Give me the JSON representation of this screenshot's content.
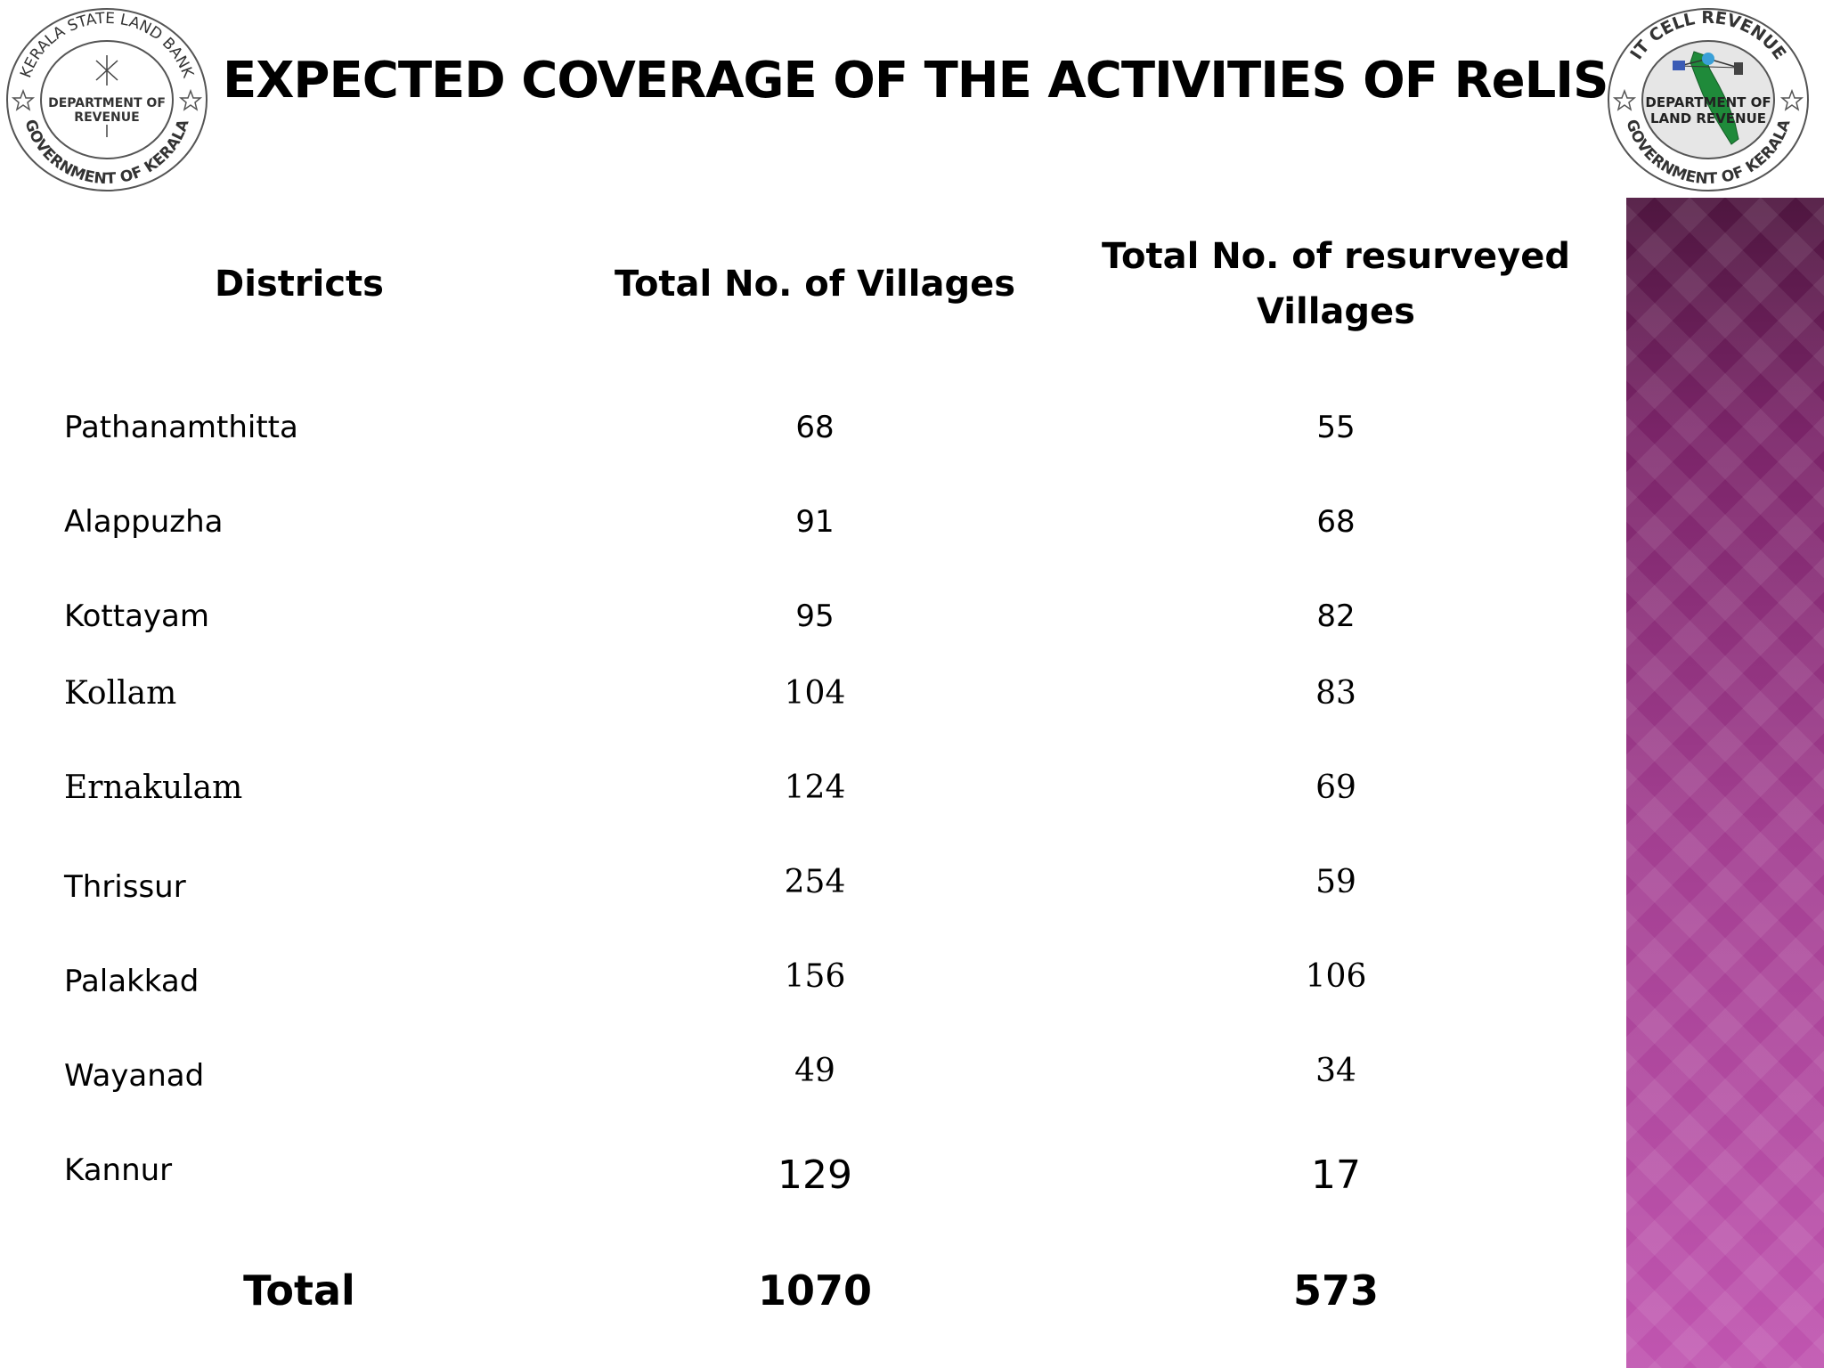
{
  "title": "EXPECTED COVERAGE OF THE ACTIVITIES OF ReLIS",
  "left_seal": {
    "ring_top": "KERALA STATE LAND BANK",
    "ring_bottom": "GOVERNMENT OF KERALA",
    "center_line1": "DEPARTMENT OF",
    "center_line2": "REVENUE"
  },
  "right_seal": {
    "ring_top": "IT CELL REVENUE",
    "ring_bottom": "GOVERNMENT OF KERALA",
    "center_line1": "DEPARTMENT OF",
    "center_line2": "LAND REVENUE"
  },
  "table": {
    "headers": {
      "district": "Districts",
      "total": "Total No. of Villages",
      "resurveyed_line1": "Total No. of resurveyed",
      "resurveyed_line2": "Villages"
    },
    "rows": [
      {
        "district": "Pathanamthitta",
        "total": "68",
        "resurveyed": "55"
      },
      {
        "district": "Alappuzha",
        "total": "91",
        "resurveyed": "68"
      },
      {
        "district": "Kottayam",
        "total": "95",
        "resurveyed": "82"
      },
      {
        "district": "Kollam",
        "total": "104",
        "resurveyed": "83"
      },
      {
        "district": "Ernakulam",
        "total": "124",
        "resurveyed": "69"
      },
      {
        "district": "Thrissur",
        "total": "254",
        "resurveyed": "59"
      },
      {
        "district": "Palakkad",
        "total": "156",
        "resurveyed": "106"
      },
      {
        "district": "Wayanad",
        "total": "49",
        "resurveyed": "34"
      },
      {
        "district": "Kannur",
        "total": "129",
        "resurveyed": "17"
      }
    ],
    "totals": {
      "label": "Total",
      "total": "1070",
      "resurveyed": "573"
    }
  },
  "colors": {
    "sidebar_top": "#4e163f",
    "sidebar_bottom": "#c055b0",
    "map_green": "#1f8a3a"
  }
}
